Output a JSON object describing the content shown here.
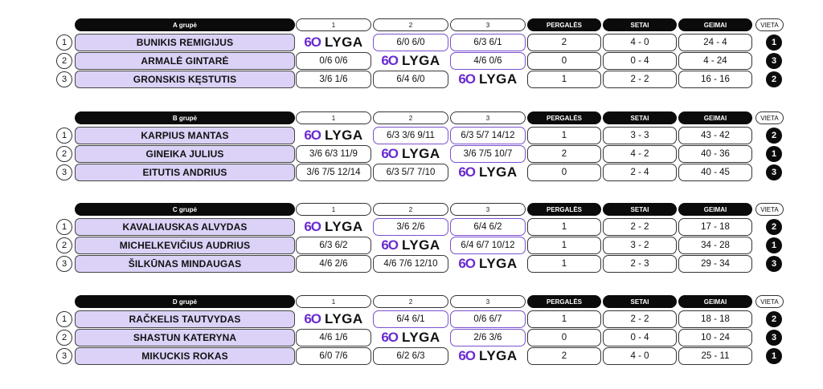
{
  "headers": {
    "col1": "1",
    "col2": "2",
    "col3": "3",
    "wins": "PERGALĖS",
    "sets": "SETAI",
    "games": "GEIMAI",
    "place": "VIETA"
  },
  "logo": {
    "num": "6O",
    "word": "LYGA"
  },
  "groups": [
    {
      "title": "A grupė",
      "players": [
        {
          "num": "1",
          "name": "BUNIKIS REMIGIJUS",
          "scores": [
            "",
            "6/0 6/0",
            "6/3 6/1"
          ],
          "wins": "2",
          "sets": "4 - 0",
          "games": "24 - 4",
          "place": "1"
        },
        {
          "num": "2",
          "name": "ARMALĖ GINTARĖ",
          "scores": [
            "0/6 0/6",
            "",
            "4/6 0/6"
          ],
          "wins": "0",
          "sets": "0 - 4",
          "games": "4 - 24",
          "place": "3"
        },
        {
          "num": "3",
          "name": "GRONSKIS KĘSTUTIS",
          "scores": [
            "3/6 1/6",
            "6/4 6/0",
            ""
          ],
          "wins": "1",
          "sets": "2 - 2",
          "games": "16 - 16",
          "place": "2"
        }
      ]
    },
    {
      "title": "B grupė",
      "players": [
        {
          "num": "1",
          "name": "KARPIUS MANTAS",
          "scores": [
            "",
            "6/3 3/6 9/11",
            "6/3 5/7 14/12"
          ],
          "wins": "1",
          "sets": "3 - 3",
          "games": "43 - 42",
          "place": "2"
        },
        {
          "num": "2",
          "name": "GINEIKA JULIUS",
          "scores": [
            "3/6 6/3 11/9",
            "",
            "3/6 7/5 10/7"
          ],
          "wins": "2",
          "sets": "4 - 2",
          "games": "40 - 36",
          "place": "1"
        },
        {
          "num": "3",
          "name": "EITUTIS ANDRIUS",
          "scores": [
            "3/6 7/5 12/14",
            "6/3 5/7 7/10",
            ""
          ],
          "wins": "0",
          "sets": "2 - 4",
          "games": "40 - 45",
          "place": "3"
        }
      ]
    },
    {
      "title": "C grupė",
      "players": [
        {
          "num": "1",
          "name": "KAVALIAUSKAS ALVYDAS",
          "scores": [
            "",
            "3/6 2/6",
            "6/4 6/2"
          ],
          "wins": "1",
          "sets": "2 - 2",
          "games": "17 - 18",
          "place": "2"
        },
        {
          "num": "2",
          "name": "MICHELKEVIČIUS AUDRIUS",
          "scores": [
            "6/3 6/2",
            "",
            "6/4 6/7 10/12"
          ],
          "wins": "1",
          "sets": "3 - 2",
          "games": "34 - 28",
          "place": "1"
        },
        {
          "num": "3",
          "name": "ŠILKŪNAS MINDAUGAS",
          "scores": [
            "4/6 2/6",
            "4/6 7/6 12/10",
            ""
          ],
          "wins": "1",
          "sets": "2 - 3",
          "games": "29 - 34",
          "place": "3"
        }
      ]
    },
    {
      "title": "D grupė",
      "players": [
        {
          "num": "1",
          "name": "RAČKELIS TAUTVYDAS",
          "scores": [
            "",
            "6/4 6/1",
            "0/6 6/7"
          ],
          "wins": "1",
          "sets": "2 - 2",
          "games": "18 - 18",
          "place": "2"
        },
        {
          "num": "2",
          "name": "SHASTUN KATERYNA",
          "scores": [
            "4/6 1/6",
            "",
            "2/6 3/6"
          ],
          "wins": "0",
          "sets": "0 - 4",
          "games": "10 - 24",
          "place": "3"
        },
        {
          "num": "3",
          "name": "MIKUCKIS ROKAS",
          "scores": [
            "6/0 7/6",
            "6/2 6/3",
            ""
          ],
          "wins": "2",
          "sets": "4 - 0",
          "games": "25 - 11",
          "place": "1"
        }
      ]
    }
  ]
}
